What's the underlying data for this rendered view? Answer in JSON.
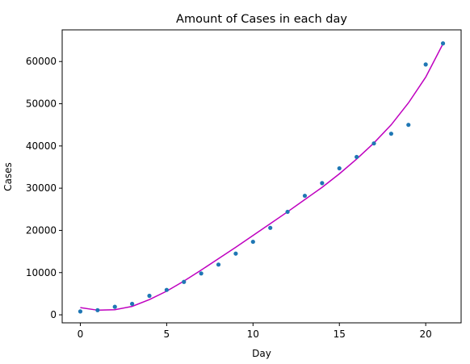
{
  "chart_data": {
    "type": "scatter",
    "title": "Amount of Cases in each day",
    "xlabel": "Day",
    "ylabel": "Cases",
    "xlim": [
      -1.05,
      22.05
    ],
    "ylim": [
      -1900,
      67500
    ],
    "xticks": [
      0,
      5,
      10,
      15,
      20
    ],
    "yticks": [
      0,
      10000,
      20000,
      30000,
      40000,
      50000,
      60000
    ],
    "grid": false,
    "legend": "none",
    "series": [
      {
        "kind": "scatter",
        "color": "#1f77b4",
        "x": [
          0,
          1,
          2,
          3,
          4,
          5,
          6,
          7,
          8,
          9,
          10,
          11,
          12,
          13,
          14,
          15,
          16,
          17,
          18,
          19,
          20,
          21
        ],
        "y": [
          800,
          1100,
          1900,
          2600,
          4500,
          5900,
          7800,
          9800,
          11900,
          14500,
          17300,
          20600,
          24400,
          28200,
          31200,
          34700,
          37400,
          40600,
          42900,
          45000,
          59300,
          64300
        ]
      },
      {
        "kind": "line",
        "color": "#bf00bf",
        "x": [
          0,
          1,
          2,
          3,
          4,
          5,
          6,
          7,
          8,
          9,
          10,
          11,
          12,
          13,
          14,
          15,
          16,
          17,
          18,
          19,
          20,
          21
        ],
        "y": [
          1700,
          1100,
          1200,
          2000,
          3600,
          5600,
          8000,
          10600,
          13300,
          16000,
          18800,
          21600,
          24400,
          27300,
          30200,
          33400,
          36900,
          40700,
          45000,
          50200,
          56300,
          64200
        ]
      }
    ]
  }
}
